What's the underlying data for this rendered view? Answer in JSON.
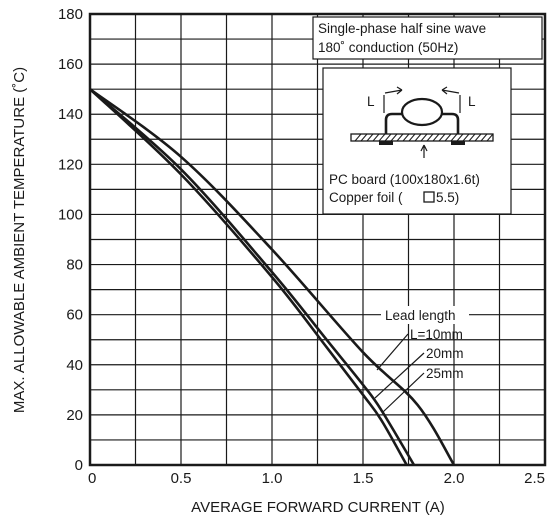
{
  "chart_data": {
    "type": "line",
    "xlabel": "AVERAGE FORWARD CURRENT (A)",
    "ylabel": "MAX. ALLOWABLE AMBIENT TEMPERATURE (˚C)",
    "xlim": [
      0,
      2.5
    ],
    "ylim": [
      0,
      180
    ],
    "x_ticks": [
      "0",
      "0.5",
      "1.0",
      "1.5",
      "2.0",
      "2.5"
    ],
    "y_ticks": [
      "0",
      "20",
      "40",
      "60",
      "80",
      "100",
      "120",
      "140",
      "160",
      "180"
    ],
    "grid": true,
    "series": [
      {
        "name": "L=10mm",
        "points": [
          [
            0,
            150
          ],
          [
            0.5,
            123
          ],
          [
            1.0,
            86
          ],
          [
            1.5,
            45
          ],
          [
            1.8,
            24
          ],
          [
            2.0,
            0
          ]
        ]
      },
      {
        "name": "20mm",
        "points": [
          [
            0,
            150
          ],
          [
            0.5,
            118
          ],
          [
            1.0,
            77
          ],
          [
            1.3,
            50
          ],
          [
            1.5,
            32
          ],
          [
            1.6,
            22
          ],
          [
            1.78,
            0
          ]
        ]
      },
      {
        "name": "25mm",
        "points": [
          [
            0,
            150
          ],
          [
            0.5,
            116
          ],
          [
            1.0,
            75
          ],
          [
            1.3,
            47
          ],
          [
            1.5,
            28
          ],
          [
            1.6,
            18
          ],
          [
            1.74,
            0
          ]
        ]
      }
    ],
    "annotations": {
      "condition_line1": "Single-phase half sine wave",
      "condition_line2": "180˚ conduction (50Hz)",
      "dimension_label": "L",
      "board_line1": "PC board (100x180x1.6t)",
      "board_line2": "Copper foil ( ",
      "board_line2_end": "5.5)",
      "lead_title": "Lead length"
    }
  }
}
